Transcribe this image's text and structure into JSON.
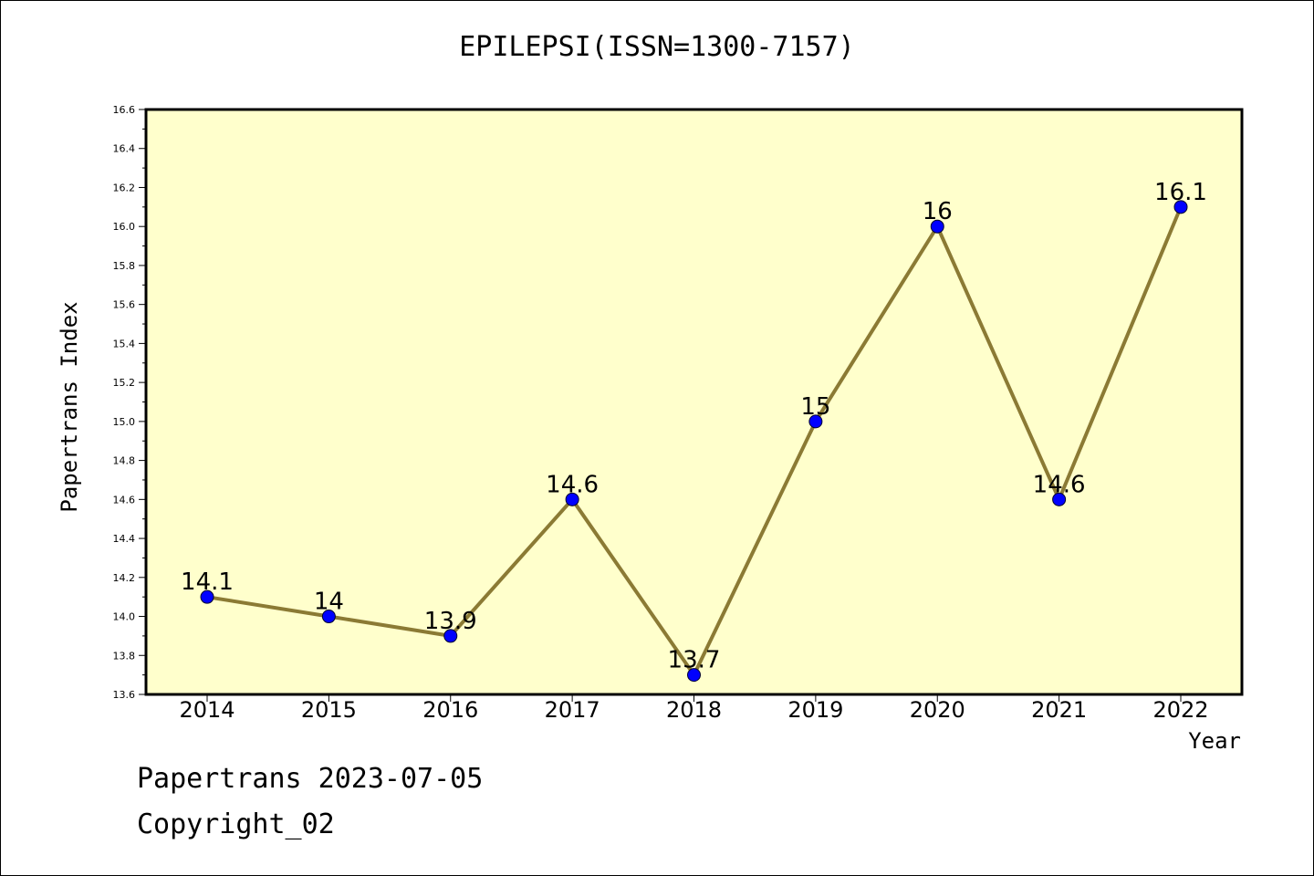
{
  "footer": {
    "line1": "Papertrans 2023-07-05",
    "line2": "Copyright_02"
  },
  "colors": {
    "plot_background": "#ffffcc",
    "line": "#8b7a34",
    "marker": "#0000ff",
    "axis": "#000000"
  },
  "chart_data": {
    "type": "line",
    "title": "EPILEPSI(ISSN=1300-7157)",
    "xlabel": "Year",
    "ylabel": "Papertrans Index",
    "x": [
      "2014",
      "2015",
      "2016",
      "2017",
      "2018",
      "2019",
      "2020",
      "2021",
      "2022"
    ],
    "series": [
      {
        "values": [
          14.1,
          14.0,
          13.9,
          14.6,
          13.7,
          15.0,
          16.0,
          14.6,
          16.1
        ],
        "labels": [
          "14.1",
          "14",
          "13.9",
          "14.6",
          "13.7",
          "15",
          "16",
          "14.6",
          "16.1"
        ]
      }
    ],
    "ylim": [
      13.6,
      16.6
    ],
    "yticks": [
      "13.6",
      "13.8",
      "14.0",
      "14.2",
      "14.4",
      "14.6",
      "14.8",
      "15.0",
      "15.2",
      "15.4",
      "15.6",
      "15.8",
      "16.0",
      "16.2",
      "16.4",
      "16.6"
    ],
    "grid": false,
    "legend": "none"
  }
}
